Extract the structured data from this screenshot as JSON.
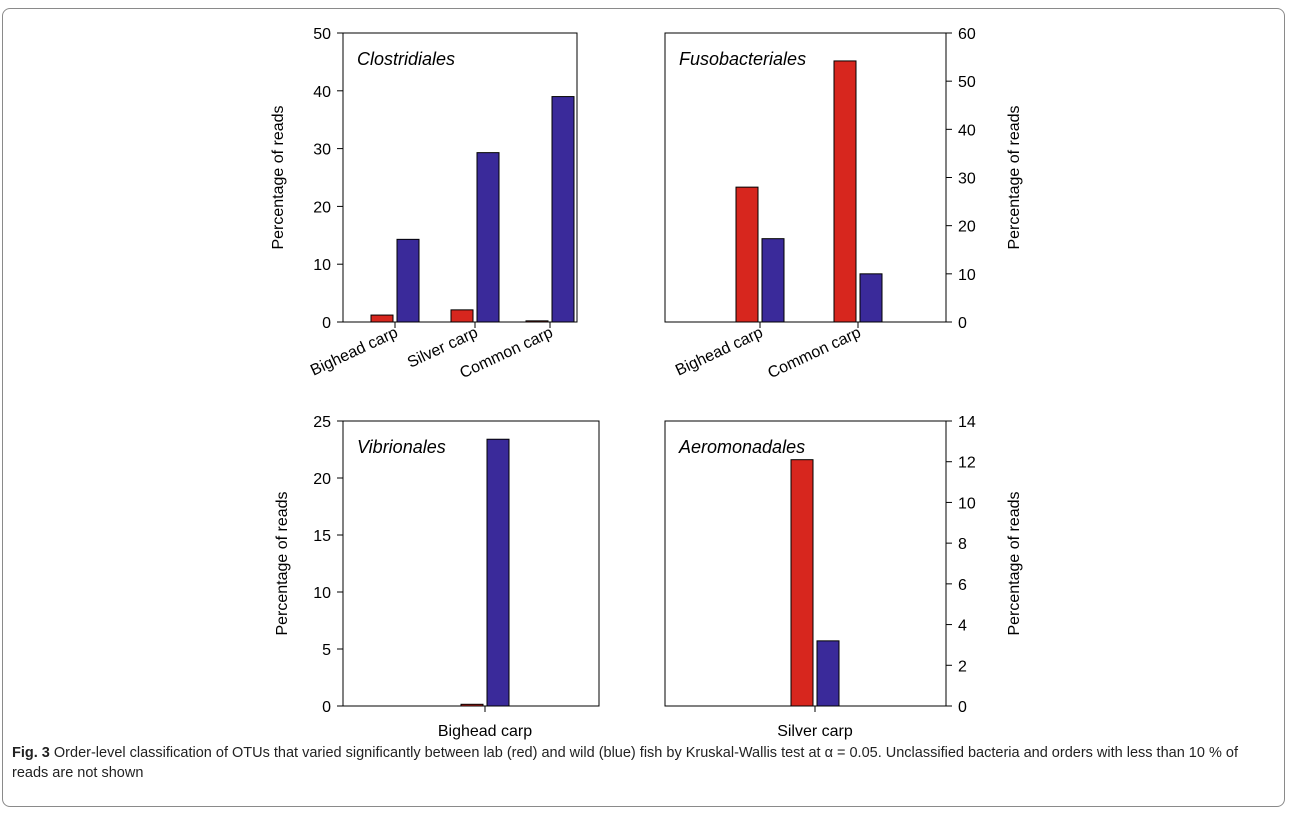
{
  "chart_data": [
    {
      "type": "bar",
      "title": "Clostridiales",
      "ylabel": "Percentage of reads",
      "ylim": [
        0,
        50
      ],
      "yticks": [
        0,
        10,
        20,
        30,
        40,
        50
      ],
      "categories": [
        "Bighead carp",
        "Silver carp",
        "Common carp"
      ],
      "series": [
        {
          "color": "#d7261e",
          "values": [
            1.2,
            2.1,
            0.2
          ]
        },
        {
          "color": "#3a2a9a",
          "values": [
            14.3,
            29.3,
            39
          ]
        }
      ]
    },
    {
      "type": "bar",
      "title": "Fusobacteriales",
      "ylabel": "Percentage of reads",
      "ylim": [
        0,
        60
      ],
      "yticks": [
        0,
        10,
        20,
        30,
        40,
        50,
        60
      ],
      "categories": [
        "Bighead carp",
        "Common carp"
      ],
      "series": [
        {
          "color": "#d7261e",
          "values": [
            28,
            54.2
          ]
        },
        {
          "color": "#3a2a9a",
          "values": [
            17.3,
            10
          ]
        }
      ]
    },
    {
      "type": "bar",
      "title": "Vibrionales",
      "ylabel": "Percentage of reads",
      "ylim": [
        0,
        25
      ],
      "yticks": [
        0,
        5,
        10,
        15,
        20,
        25
      ],
      "categories": [
        "Bighead carp"
      ],
      "series": [
        {
          "color": "#d7261e",
          "values": [
            0.15
          ]
        },
        {
          "color": "#3a2a9a",
          "values": [
            23.4
          ]
        }
      ]
    },
    {
      "type": "bar",
      "title": "Aeromonadales",
      "ylabel": "Percentage of reads",
      "ylim": [
        0,
        14
      ],
      "yticks": [
        0,
        2,
        4,
        6,
        8,
        10,
        12,
        14
      ],
      "categories": [
        "Silver carp"
      ],
      "series": [
        {
          "color": "#d7261e",
          "values": [
            12.1
          ]
        },
        {
          "color": "#3a2a9a",
          "values": [
            3.2
          ]
        }
      ]
    }
  ],
  "caption": {
    "label": "Fig. 3",
    "text": " Order-level classification of OTUs that varied significantly between lab (red) and wild (blue) fish by Kruskal-Wallis test at α = 0.05. Unclassified bacteria and orders with less than 10 % of reads are not shown"
  }
}
